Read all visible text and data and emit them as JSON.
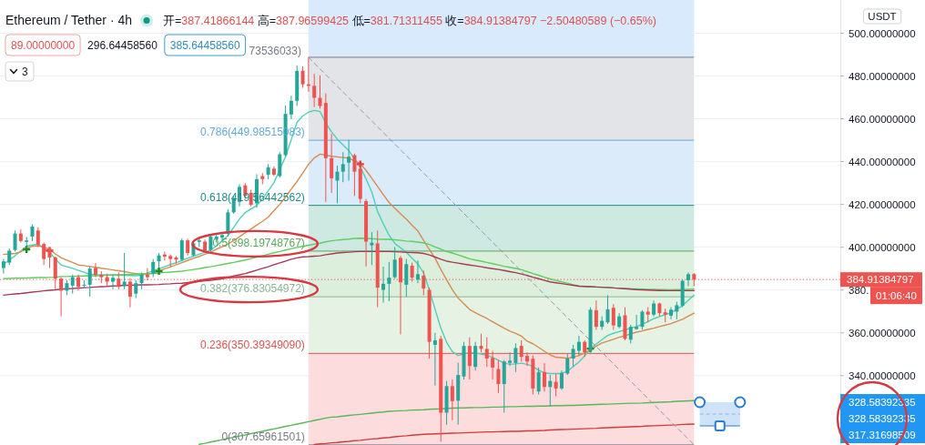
{
  "chart_data": {
    "type": "candlestick",
    "title": "Ethereum / Tether · 4h",
    "subtitle": "开=387.41866144 高=387.96599425 低=381.71311455 收=384.91384797 −2.50480589 (−0.65%)",
    "ylabel": "USDT",
    "categories": [
      null,
      null,
      null,
      null,
      null,
      null,
      null,
      null,
      null,
      null,
      null,
      null,
      null,
      null,
      null,
      null,
      null,
      null,
      null,
      null,
      null,
      null,
      null,
      null,
      null,
      null,
      null,
      null,
      null,
      null,
      null,
      null,
      null,
      null,
      null,
      null,
      null,
      null,
      null,
      null,
      null,
      null,
      null,
      null,
      null,
      null,
      null,
      null,
      null,
      null,
      null,
      null,
      null,
      null,
      null,
      null,
      null,
      null,
      null,
      null,
      null,
      null,
      null,
      null,
      null,
      null,
      null,
      null,
      null,
      null,
      null,
      null,
      null,
      null,
      null,
      null,
      null,
      null,
      null,
      null,
      null,
      null,
      null,
      null,
      null,
      null,
      null,
      null,
      null,
      null,
      null,
      null,
      null,
      null,
      null,
      null,
      null,
      null,
      null,
      null,
      null,
      null,
      null,
      null,
      null,
      null,
      null,
      null,
      null,
      null,
      null,
      null,
      null,
      null,
      null,
      null,
      null,
      null,
      null,
      null,
      null
    ],
    "ohlc": [
      [
        390.3,
        394.5,
        387.7,
        393.4
      ],
      [
        392.8,
        399.4,
        391.7,
        398.4
      ],
      [
        398.7,
        407.8,
        398.0,
        406.4
      ],
      [
        406.4,
        408.3,
        402.2,
        402.9
      ],
      [
        402.5,
        404.8,
        399.5,
        403.2
      ],
      [
        405.0,
        410.7,
        402.9,
        409.7
      ],
      [
        407.8,
        409.3,
        400.1,
        401.2
      ],
      [
        401.5,
        402.2,
        391.7,
        394.5
      ],
      [
        399.4,
        400.1,
        390.3,
        395.2
      ],
      [
        395.2,
        395.6,
        380.4,
        385.3
      ],
      [
        385.3,
        386.0,
        367.7,
        379.7
      ],
      [
        379.7,
        384.6,
        377.6,
        383.2
      ],
      [
        382.1,
        387.2,
        378.3,
        386.0
      ],
      [
        386.0,
        387.2,
        379.7,
        381.5
      ],
      [
        382.3,
        384.6,
        381.1,
        382.5
      ],
      [
        382.5,
        390.9,
        376.9,
        390.0
      ],
      [
        390.3,
        392.6,
        386.0,
        387.1
      ],
      [
        387.1,
        388.8,
        383.2,
        386.0
      ],
      [
        386.0,
        387.7,
        381.8,
        383.9
      ],
      [
        383.9,
        387.2,
        380.4,
        385.7
      ],
      [
        385.3,
        388.2,
        380.4,
        381.5
      ],
      [
        381.8,
        397.3,
        380.4,
        383.9
      ],
      [
        383.9,
        385.6,
        371.9,
        376.9
      ],
      [
        378.3,
        384.6,
        376.2,
        383.2
      ],
      [
        383.2,
        388.1,
        380.4,
        387.1
      ],
      [
        387.1,
        390.2,
        384.6,
        386.0
      ],
      [
        387.7,
        394.5,
        386.0,
        393.1
      ],
      [
        393.4,
        397.3,
        390.3,
        396.2
      ],
      [
        396.6,
        398.0,
        393.8,
        395.6
      ],
      [
        395.9,
        396.6,
        390.9,
        394.5
      ],
      [
        395.2,
        395.9,
        392.4,
        394.2
      ],
      [
        394.2,
        404.0,
        393.4,
        403.2
      ],
      [
        403.2,
        404.0,
        396.2,
        397.3
      ],
      [
        396.2,
        402.9,
        395.6,
        401.8
      ],
      [
        402.5,
        405.0,
        400.1,
        403.2
      ],
      [
        402.6,
        403.6,
        398.0,
        398.4
      ],
      [
        398.7,
        406.0,
        398.0,
        405.0
      ],
      [
        403.6,
        406.4,
        402.2,
        405.0
      ],
      [
        404.6,
        407.1,
        402.9,
        405.7
      ],
      [
        406.4,
        417.7,
        405.0,
        416.3
      ],
      [
        416.3,
        424.0,
        415.6,
        422.9
      ],
      [
        421.2,
        429.4,
        419.1,
        428.2
      ],
      [
        428.9,
        429.9,
        422.6,
        424.0
      ],
      [
        425.4,
        426.8,
        419.1,
        419.8
      ],
      [
        420.5,
        434.1,
        418.4,
        431.8
      ],
      [
        433.2,
        434.6,
        429.4,
        431.8
      ],
      [
        433.9,
        438.8,
        431.8,
        437.4
      ],
      [
        436.7,
        437.8,
        433.2,
        433.9
      ],
      [
        433.2,
        444.4,
        432.5,
        443.4
      ],
      [
        443.0,
        466.2,
        442.3,
        462.3
      ],
      [
        462.0,
        470.7,
        459.9,
        468.4
      ],
      [
        468.4,
        485.0,
        466.0,
        482.4
      ],
      [
        482.4,
        484.5,
        474.5,
        476.1
      ],
      [
        476.1,
        488.7,
        472.6,
        475.4
      ],
      [
        475.4,
        481.0,
        465.5,
        469.8
      ],
      [
        469.8,
        480.3,
        464.8,
        466.0
      ],
      [
        467.4,
        471.9,
        421.2,
        441.6
      ],
      [
        441.6,
        452.9,
        425.4,
        432.2
      ],
      [
        431.1,
        438.1,
        420.5,
        435.3
      ],
      [
        435.3,
        444.4,
        430.4,
        438.8
      ],
      [
        439.5,
        450.1,
        431.1,
        442.3
      ],
      [
        443.0,
        443.7,
        424.0,
        435.3
      ],
      [
        436.7,
        438.8,
        420.5,
        422.6
      ],
      [
        421.5,
        422.6,
        391.0,
        402.6
      ],
      [
        400.9,
        407.1,
        391.7,
        402.1
      ],
      [
        401.8,
        407.8,
        372.0,
        381.1
      ],
      [
        380.1,
        390.9,
        374.1,
        382.9
      ],
      [
        382.9,
        393.1,
        374.8,
        385.8
      ],
      [
        386.0,
        400.1,
        385.3,
        394.2
      ],
      [
        395.0,
        395.9,
        359.3,
        383.6
      ],
      [
        382.5,
        394.5,
        376.9,
        392.1
      ],
      [
        391.4,
        392.8,
        383.9,
        385.8
      ],
      [
        384.9,
        393.8,
        383.2,
        387.4
      ],
      [
        386.7,
        389.1,
        377.6,
        380.7
      ],
      [
        380.1,
        381.1,
        348.0,
        355.8
      ],
      [
        354.4,
        360.0,
        335.4,
        356.5
      ],
      [
        357.2,
        358.6,
        309.2,
        322.7
      ],
      [
        322.7,
        337.5,
        317.1,
        335.1
      ],
      [
        335.1,
        338.2,
        319.2,
        328.1
      ],
      [
        328.3,
        346.0,
        317.1,
        340.3
      ],
      [
        339.6,
        355.8,
        338.2,
        353.9
      ],
      [
        353.9,
        357.9,
        338.2,
        344.5
      ],
      [
        344.1,
        355.8,
        342.4,
        353.9
      ],
      [
        353.9,
        359.6,
        350.9,
        352.5
      ],
      [
        352.5,
        357.9,
        344.1,
        348.0
      ],
      [
        348.3,
        351.6,
        338.2,
        343.8
      ],
      [
        343.1,
        347.3,
        331.9,
        336.1
      ],
      [
        336.1,
        347.3,
        322.7,
        346.6
      ],
      [
        346.0,
        350.8,
        344.5,
        347.0
      ],
      [
        345.9,
        355.1,
        341.7,
        352.9
      ],
      [
        353.9,
        356.5,
        346.6,
        348.8
      ],
      [
        349.2,
        350.9,
        344.5,
        346.6
      ],
      [
        347.9,
        349.4,
        331.2,
        334.0
      ],
      [
        332.6,
        343.8,
        331.2,
        341.7
      ],
      [
        341.7,
        345.9,
        332.6,
        334.7
      ],
      [
        334.7,
        340.3,
        325.6,
        337.5
      ],
      [
        337.1,
        340.9,
        330.4,
        334.0
      ],
      [
        334.0,
        342.4,
        333.3,
        341.3
      ],
      [
        341.0,
        350.1,
        340.3,
        348.0
      ],
      [
        348.0,
        354.4,
        344.5,
        352.5
      ],
      [
        351.6,
        358.6,
        349.4,
        355.8
      ],
      [
        355.8,
        356.5,
        348.8,
        350.9
      ],
      [
        351.6,
        371.9,
        350.9,
        370.8
      ],
      [
        370.6,
        375.1,
        361.4,
        362.8
      ],
      [
        362.8,
        367.7,
        361.4,
        365.6
      ],
      [
        364.9,
        377.6,
        364.2,
        371.0
      ],
      [
        371.7,
        373.4,
        361.4,
        363.5
      ],
      [
        362.8,
        369.2,
        362.1,
        367.7
      ],
      [
        368.2,
        371.9,
        356.5,
        357.2
      ],
      [
        356.8,
        363.8,
        355.1,
        362.8
      ],
      [
        361.8,
        368.4,
        361.4,
        362.8
      ],
      [
        362.8,
        370.6,
        361.4,
        369.9
      ],
      [
        369.9,
        372.0,
        364.9,
        368.5
      ],
      [
        368.5,
        375.1,
        367.7,
        373.7
      ],
      [
        373.7,
        374.1,
        367.7,
        369.2
      ],
      [
        369.6,
        371.3,
        364.9,
        368.5
      ],
      [
        368.0,
        372.0,
        366.3,
        370.8
      ],
      [
        369.9,
        374.5,
        366.3,
        372.9
      ],
      [
        372.7,
        384.9,
        372.0,
        384.3
      ],
      [
        384.6,
        388.2,
        381.8,
        387.4
      ],
      [
        387.41866144,
        387.96599425,
        381.71311455,
        384.91384797
      ]
    ],
    "colors": [
      "#26a69a",
      "#26a69a",
      "#26a69a",
      "#ef5350",
      "#26a69a",
      "#26a69a",
      "#ef5350",
      "#ef5350",
      "#ef5350",
      "#ef5350",
      "#ef5350",
      "#26a69a",
      "#26a69a",
      "#ef5350",
      "#26a69a",
      "#26a69a",
      "#ef5350",
      "#ef5350",
      "#ef5350",
      "#26a69a",
      "#ef5350",
      "#26a69a",
      "#ef5350",
      "#26a69a",
      "#26a69a",
      "#ef5350",
      "#26a69a",
      "#26a69a",
      "#ef5350",
      "#ef5350",
      "#ef5350",
      "#26a69a",
      "#ef5350",
      "#26a69a",
      "#26a69a",
      "#ef5350",
      "#26a69a",
      "#26a69a",
      "#26a69a",
      "#26a69a",
      "#26a69a",
      "#26a69a",
      "#ef5350",
      "#ef5350",
      "#26a69a",
      "#ef5350",
      "#26a69a",
      "#ef5350",
      "#26a69a",
      "#26a69a",
      "#26a69a",
      "#26a69a",
      "#ef5350",
      "#ef5350",
      "#ef5350",
      "#ef5350",
      "#ef5350",
      "#ef5350",
      "#26a69a",
      "#26a69a",
      "#26a69a",
      "#ef5350",
      "#ef5350",
      "#ef5350",
      "#26a69a",
      "#ef5350",
      "#26a69a",
      "#26a69a",
      "#26a69a",
      "#ef5350",
      "#26a69a",
      "#ef5350",
      "#26a69a",
      "#ef5350",
      "#ef5350",
      "#26a69a",
      "#ef5350",
      "#26a69a",
      "#ef5350",
      "#26a69a",
      "#26a69a",
      "#ef5350",
      "#26a69a",
      "#ef5350",
      "#ef5350",
      "#ef5350",
      "#ef5350",
      "#26a69a",
      "#26a69a",
      "#26a69a",
      "#ef5350",
      "#ef5350",
      "#ef5350",
      "#26a69a",
      "#ef5350",
      "#26a69a",
      "#ef5350",
      "#26a69a",
      "#26a69a",
      "#26a69a",
      "#26a69a",
      "#ef5350",
      "#26a69a",
      "#ef5350",
      "#26a69a",
      "#26a69a",
      "#ef5350",
      "#26a69a",
      "#ef5350",
      "#26a69a",
      "#26a69a",
      "#26a69a",
      "#ef5350",
      "#26a69a",
      "#ef5350",
      "#ef5350",
      "#26a69a",
      "#26a69a",
      "#26a69a",
      "#26a69a",
      "#ef5350"
    ],
    "series": [
      {
        "type": "line",
        "color": "#4dd0b8",
        "values": [
          392.0,
          394.0,
          396.0,
          398.3,
          400.5,
          401.0,
          401.5,
          399.5,
          397.5,
          394.6,
          391.7,
          390.9,
          390.1,
          389.2,
          388.3,
          387.4,
          387.2,
          387.1,
          387.0,
          387.0,
          386.9,
          386.9,
          386.8,
          386.7,
          387.0,
          388.0,
          389.0,
          389.9,
          390.9,
          391.9,
          392.8,
          393.8,
          394.8,
          395.8,
          396.7,
          397.7,
          398.7,
          400.6,
          402.9,
          405.4,
          409.3,
          413.2,
          416.2,
          417.9,
          419.5,
          422.7,
          426.3,
          430.2,
          436.3,
          442.3,
          450.3,
          458.4,
          461.3,
          463.1,
          463.9,
          463.4,
          458.0,
          453.9,
          450.5,
          447.8,
          445.1,
          441.3,
          437.5,
          431.9,
          425.8,
          416.7,
          410.9,
          405.6,
          401.8,
          399.7,
          397.6,
          394.9,
          392.2,
          388.0,
          380.0,
          371.0,
          362.2,
          355.6,
          351.2,
          349.4,
          350.1,
          350.8,
          350.6,
          350.1,
          349.5,
          348.5,
          347.2,
          345.9,
          345.3,
          345.5,
          345.8,
          345.3,
          344.3,
          342.5,
          341.3,
          341.0,
          341.0,
          341.0,
          342.1,
          344.2,
          346.4,
          349.3,
          352.4,
          354.8,
          356.8,
          358.8,
          359.8,
          360.6,
          361.4,
          362.2,
          362.9,
          364.0,
          365.3,
          366.6,
          367.6,
          368.5,
          369.4,
          371.0,
          372.7,
          375.2,
          377.6
        ]
      },
      {
        "type": "line",
        "color": "#d88c52",
        "values": [
          396.6,
          396.9,
          397.1,
          397.9,
          399.4,
          400.5,
          400.7,
          400.1,
          398.9,
          396.9,
          395.1,
          394.0,
          392.9,
          391.7,
          391.4,
          391.0,
          390.6,
          390.2,
          389.8,
          389.4,
          389.0,
          388.6,
          388.1,
          387.7,
          387.2,
          387.4,
          387.9,
          388.9,
          389.9,
          390.8,
          391.8,
          392.8,
          393.8,
          394.8,
          395.7,
          396.7,
          397.7,
          399.1,
          400.2,
          401.5,
          403.1,
          404.9,
          406.7,
          408.5,
          410.3,
          412.1,
          414.1,
          417.1,
          420.0,
          423.4,
          427.1,
          430.7,
          434.7,
          438.7,
          441.7,
          443.5,
          443.0,
          442.5,
          442.2,
          441.9,
          441.6,
          440.3,
          439.1,
          435.9,
          432.2,
          428.4,
          424.6,
          420.9,
          418.2,
          415.6,
          413.1,
          410.3,
          407.6,
          403.2,
          398.9,
          394.9,
          389.6,
          384.8,
          380.1,
          376.3,
          373.6,
          370.9,
          369.4,
          368.0,
          366.7,
          365.2,
          363.7,
          362.2,
          360.8,
          359.7,
          358.5,
          356.1,
          354.9,
          353.2,
          351.4,
          349.7,
          348.6,
          348.4,
          348.1,
          348.7,
          349.3,
          350.6,
          352.1,
          353.8,
          355.3,
          356.1,
          357.0,
          357.9,
          358.7,
          359.5,
          360.3,
          360.9,
          361.6,
          362.2,
          362.9,
          363.6,
          364.3,
          365.4,
          366.3,
          367.8,
          369.2
        ]
      },
      {
        "type": "line",
        "color": "#5ecf5e",
        "values": [
          385.3,
          385.4,
          385.5,
          385.5,
          385.6,
          385.7,
          385.8,
          385.8,
          385.9,
          386.0,
          386.3,
          386.3,
          386.4,
          386.5,
          386.6,
          386.7,
          386.7,
          386.8,
          386.9,
          387.0,
          387.1,
          387.2,
          387.3,
          387.4,
          387.5,
          387.6,
          387.7,
          387.9,
          388.2,
          388.4,
          388.6,
          388.8,
          389.2,
          389.6,
          390.0,
          390.5,
          390.9,
          391.4,
          391.9,
          392.4,
          392.9,
          393.5,
          394.0,
          394.7,
          395.4,
          396.0,
          396.7,
          397.4,
          398.0,
          398.7,
          399.3,
          399.9,
          400.4,
          400.9,
          401.4,
          401.9,
          402.5,
          403.0,
          403.3,
          403.6,
          403.8,
          404.1,
          404.2,
          404.1,
          404.0,
          403.8,
          403.7,
          403.7,
          403.5,
          403.2,
          402.9,
          402.7,
          402.4,
          402.0,
          401.3,
          400.1,
          399.1,
          398.0,
          397.3,
          396.4,
          395.5,
          394.6,
          394.0,
          393.5,
          392.9,
          392.3,
          391.7,
          391.1,
          390.6,
          390.1,
          389.5,
          388.6,
          387.7,
          386.9,
          386.0,
          385.2,
          384.5,
          383.8,
          383.2,
          382.5,
          381.9,
          381.7,
          381.6,
          381.5,
          381.3,
          381.2,
          381.0,
          380.9,
          380.8,
          380.6,
          380.5,
          380.4,
          380.3,
          380.3,
          380.2,
          380.2,
          380.1,
          380.2,
          380.2,
          380.3,
          380.4
        ]
      },
      {
        "type": "line",
        "color": "#a8385a",
        "values": [
          377.6,
          377.9,
          378.2,
          378.4,
          378.7,
          379.0,
          379.3,
          379.6,
          379.9,
          380.1,
          380.4,
          380.6,
          380.7,
          380.9,
          381.1,
          381.2,
          381.4,
          381.6,
          381.7,
          381.9,
          382.0,
          382.2,
          382.2,
          382.3,
          382.4,
          382.4,
          382.5,
          382.6,
          382.8,
          382.9,
          383.1,
          383.2,
          383.5,
          383.7,
          384.0,
          384.3,
          384.5,
          384.8,
          385.3,
          385.8,
          386.6,
          387.1,
          387.7,
          388.5,
          389.3,
          390.1,
          390.9,
          391.8,
          392.7,
          393.5,
          394.4,
          395.0,
          395.5,
          395.6,
          395.8,
          396.0,
          396.5,
          396.9,
          397.3,
          397.5,
          397.7,
          397.9,
          398.0,
          398.0,
          398.0,
          398.0,
          398.0,
          398.0,
          397.9,
          397.8,
          397.6,
          397.5,
          397.4,
          397.1,
          396.4,
          395.4,
          394.4,
          393.5,
          393.0,
          392.6,
          392.1,
          391.7,
          391.3,
          390.9,
          390.4,
          390.0,
          389.6,
          389.1,
          388.6,
          388.1,
          387.5,
          386.8,
          386.0,
          385.3,
          384.5,
          383.8,
          383.4,
          383.0,
          382.6,
          382.2,
          381.8,
          381.7,
          381.6,
          381.4,
          381.3,
          381.2,
          381.0,
          380.8,
          380.6,
          380.4,
          380.2,
          380.1,
          380.0,
          379.9,
          379.8,
          379.7,
          379.7,
          379.7,
          379.7,
          379.7,
          379.7
        ]
      },
      {
        "type": "line",
        "color": "#57b857",
        "values": [
          null,
          null,
          null,
          null,
          null,
          null,
          null,
          null,
          null,
          null,
          null,
          null,
          null,
          null,
          null,
          null,
          null,
          null,
          null,
          null,
          null,
          null,
          null,
          null,
          null,
          null,
          null,
          null,
          null,
          null,
          null,
          null,
          null,
          null,
          307.9,
          308.4,
          309.0,
          309.5,
          310.1,
          310.7,
          311.2,
          311.8,
          312.3,
          312.9,
          313.5,
          314.0,
          314.6,
          315.1,
          315.7,
          316.3,
          316.8,
          317.4,
          317.9,
          318.5,
          319.1,
          319.6,
          320.2,
          320.6,
          320.8,
          321.1,
          321.4,
          321.7,
          321.9,
          322.2,
          322.5,
          322.8,
          323.0,
          323.3,
          323.5,
          323.6,
          323.7,
          323.9,
          324.0,
          324.1,
          324.3,
          324.4,
          324.5,
          324.7,
          324.8,
          324.9,
          324.9,
          325.0,
          325.1,
          325.1,
          325.2,
          325.3,
          325.3,
          325.4,
          325.5,
          325.5,
          325.6,
          325.7,
          325.7,
          325.8,
          325.8,
          325.9,
          326.0,
          326.0,
          326.1,
          326.1,
          326.2,
          326.3,
          326.4,
          326.5,
          326.6,
          326.7,
          326.8,
          326.9,
          327.0,
          327.1,
          327.1,
          327.2,
          327.4,
          327.5,
          327.6,
          327.7,
          327.8,
          328.0,
          328.1,
          328.2,
          328.3
        ]
      },
      {
        "type": "line",
        "color": "#d23c3c",
        "values": [
          null,
          null,
          null,
          null,
          null,
          null,
          null,
          null,
          null,
          null,
          null,
          null,
          null,
          null,
          null,
          null,
          null,
          null,
          null,
          null,
          null,
          null,
          null,
          null,
          null,
          null,
          null,
          null,
          null,
          null,
          null,
          null,
          null,
          null,
          null,
          null,
          null,
          null,
          null,
          null,
          null,
          null,
          null,
          null,
          null,
          null,
          null,
          null,
          null,
          null,
          null,
          null,
          null,
          null,
          307.8,
          308.1,
          308.3,
          308.6,
          308.8,
          309.1,
          309.3,
          309.6,
          309.8,
          310.1,
          310.4,
          310.6,
          310.9,
          311.1,
          311.4,
          311.7,
          311.9,
          312.2,
          312.4,
          312.6,
          312.7,
          312.8,
          312.9,
          313.0,
          313.1,
          313.2,
          313.3,
          313.4,
          313.5,
          313.6,
          313.7,
          313.7,
          313.8,
          313.9,
          314.0,
          314.0,
          314.1,
          314.2,
          314.2,
          314.3,
          314.4,
          314.6,
          314.7,
          314.8,
          314.9,
          315.0,
          315.1,
          315.2,
          315.3,
          315.4,
          315.6,
          315.7,
          315.8,
          315.9,
          316.0,
          316.1,
          316.2,
          316.3,
          316.5,
          316.6,
          316.7,
          316.8,
          316.9,
          317.0,
          317.2,
          317.3,
          317.4
        ]
      },
      {
        "type": "line",
        "color": "#9598a1",
        "line_style": "dashed",
        "values": [
          null,
          null,
          null,
          null,
          null,
          null,
          null,
          null,
          null,
          null,
          null,
          null,
          null,
          null,
          null,
          null,
          null,
          null,
          null,
          null,
          null,
          null,
          null,
          null,
          null,
          null,
          null,
          null,
          null,
          null,
          null,
          null,
          null,
          null,
          null,
          null,
          null,
          null,
          null,
          null,
          null,
          null,
          null,
          null,
          null,
          null,
          null,
          null,
          null,
          null,
          null,
          null,
          null,
          488.7,
          486.0,
          483.3,
          480.6,
          477.9,
          475.2,
          472.5,
          469.8,
          467.1,
          464.4,
          461.7,
          459.0,
          456.3,
          453.6,
          450.9,
          448.2,
          445.5,
          442.8,
          440.1,
          437.4,
          434.7,
          432.0,
          429.3,
          426.6,
          423.9,
          421.2,
          418.5,
          415.8,
          413.1,
          410.4,
          407.7,
          405.0,
          402.3,
          399.6,
          396.9,
          394.2,
          391.5,
          388.7,
          386.0,
          383.3,
          380.6,
          377.9,
          375.2,
          372.5,
          369.8,
          367.1,
          364.4,
          361.7,
          359.0,
          356.3,
          353.6,
          350.9,
          348.2,
          345.5,
          342.8,
          340.1,
          337.4,
          334.7,
          332.0,
          329.3,
          326.6,
          323.9,
          321.2,
          318.5,
          315.8,
          313.1,
          310.4,
          307.7
        ]
      },
      {
        "type": "scatter",
        "color": "#1e8a1e",
        "marker": "cross",
        "values": [
          null,
          null,
          null,
          null,
          399.0,
          null,
          null,
          null,
          null,
          null,
          null,
          null,
          null,
          null,
          null,
          null,
          null,
          null,
          null,
          null,
          null,
          null,
          null,
          null,
          null,
          null,
          null,
          388.8,
          null,
          null,
          null,
          null,
          null,
          null,
          null,
          null,
          null,
          null,
          null,
          null,
          null,
          null,
          null,
          null,
          null,
          null,
          null,
          null,
          null,
          null,
          null,
          null,
          null,
          null,
          null,
          null,
          null,
          null,
          null,
          null,
          null,
          null,
          null,
          null,
          null,
          null,
          null,
          null,
          null,
          null,
          null,
          null,
          null,
          null,
          null,
          null,
          null,
          null,
          null,
          null,
          null,
          null,
          null,
          null,
          null,
          null,
          null,
          null,
          null,
          null,
          null,
          null,
          null,
          null,
          null,
          null,
          null,
          null,
          null,
          null,
          null,
          null,
          352.6,
          null,
          null,
          null,
          null,
          null,
          null,
          null,
          null,
          null,
          null,
          null,
          null,
          null,
          null,
          null,
          null,
          null,
          null
        ]
      },
      {
        "type": "scatter",
        "color": "#e53935",
        "marker": "cross",
        "values": [
          null,
          null,
          null,
          null,
          null,
          null,
          null,
          null,
          398.4,
          null,
          null,
          null,
          null,
          null,
          null,
          null,
          null,
          null,
          null,
          null,
          null,
          null,
          null,
          null,
          null,
          null,
          null,
          null,
          null,
          null,
          null,
          null,
          null,
          null,
          null,
          null,
          null,
          null,
          null,
          null,
          null,
          null,
          null,
          null,
          null,
          null,
          null,
          null,
          null,
          null,
          null,
          null,
          null,
          null,
          null,
          null,
          null,
          null,
          null,
          null,
          null,
          null,
          438.8,
          null,
          null,
          null,
          null,
          null,
          null,
          null,
          null,
          null,
          null,
          null,
          null,
          null,
          null,
          null,
          null,
          null,
          null,
          null,
          null,
          null,
          null,
          null,
          null,
          null,
          null,
          null,
          null,
          null,
          null,
          null,
          null,
          null,
          null,
          null,
          null,
          null,
          null,
          null,
          null,
          null,
          null,
          null,
          null,
          null,
          null,
          null,
          null,
          null,
          null,
          null,
          null,
          null,
          null,
          null,
          null,
          null,
          null
        ]
      }
    ],
    "ylim": [
      307.6,
      515.5
    ],
    "yticks": [
      {
        "value": 340,
        "label": "340.00000000"
      },
      {
        "value": 360,
        "label": "360.00000000"
      },
      {
        "value": 380,
        "label": "380."
      },
      {
        "value": 400,
        "label": "400.00000000"
      },
      {
        "value": 420,
        "label": "420.00000000"
      },
      {
        "value": 440,
        "label": "440.00000000"
      },
      {
        "value": 460,
        "label": "460.00000000"
      },
      {
        "value": 480,
        "label": "480.00000000"
      },
      {
        "value": 500,
        "label": "500.00000000"
      }
    ],
    "tick_labels": "y",
    "grid": "y",
    "bands": [
      {
        "axis": "y",
        "from": 488.73536033,
        "to": 515.5,
        "color": "#d8eafb"
      },
      {
        "axis": "y",
        "from": 449.98515083,
        "to": 488.73536033,
        "color": "#e3e4e7"
      },
      {
        "axis": "y",
        "from": 419.56442562,
        "to": 449.98515083,
        "color": "#dcebf9"
      },
      {
        "axis": "y",
        "from": 398.19748767,
        "to": 419.56442562,
        "color": "#cde9e2"
      },
      {
        "axis": "y",
        "from": 376.83054972,
        "to": 398.19748767,
        "color": "#dcefdc"
      },
      {
        "axis": "y",
        "from": 350.3934909,
        "to": 376.83054972,
        "color": "#e6f2e3"
      },
      {
        "axis": "y",
        "from": 307.65961501,
        "to": 350.3934909,
        "color": "#fcdcdc"
      }
    ],
    "ref_lines": [
      {
        "axis": "y",
        "value": 488.73536033,
        "color": "#787b86"
      },
      {
        "axis": "y",
        "value": 449.98515083,
        "label": "0.786(449.98515083)",
        "color": "#64a8dc"
      },
      {
        "axis": "y",
        "value": 419.56442562,
        "label": "0.618(419.56442562)",
        "color": "#1e8c86"
      },
      {
        "axis": "y",
        "value": 398.19748767,
        "label": "0.5(398.19748767)",
        "color": "#5aa85a"
      },
      {
        "axis": "y",
        "value": 376.83054972,
        "label": "0.382(376.83054972)",
        "color": "#88b894"
      },
      {
        "axis": "y",
        "value": 350.3934909,
        "label": "0.236(350.39349090)",
        "color": "#d9534f"
      },
      {
        "axis": "y",
        "value": 307.65961501,
        "label": "0(307.65961501)",
        "color": "#787b86"
      },
      {
        "axis": "y",
        "value": 384.91384797,
        "label": "384.91384797",
        "color": "#ef5350",
        "line_style": "dotted"
      }
    ],
    "annotations": [
      "89.00000000",
      "296.64458560",
      "385.64458560",
      "73536033)",
      "3",
      "01:06:40",
      "328.58392335",
      "328.58392335",
      "317.31698509"
    ]
  }
}
